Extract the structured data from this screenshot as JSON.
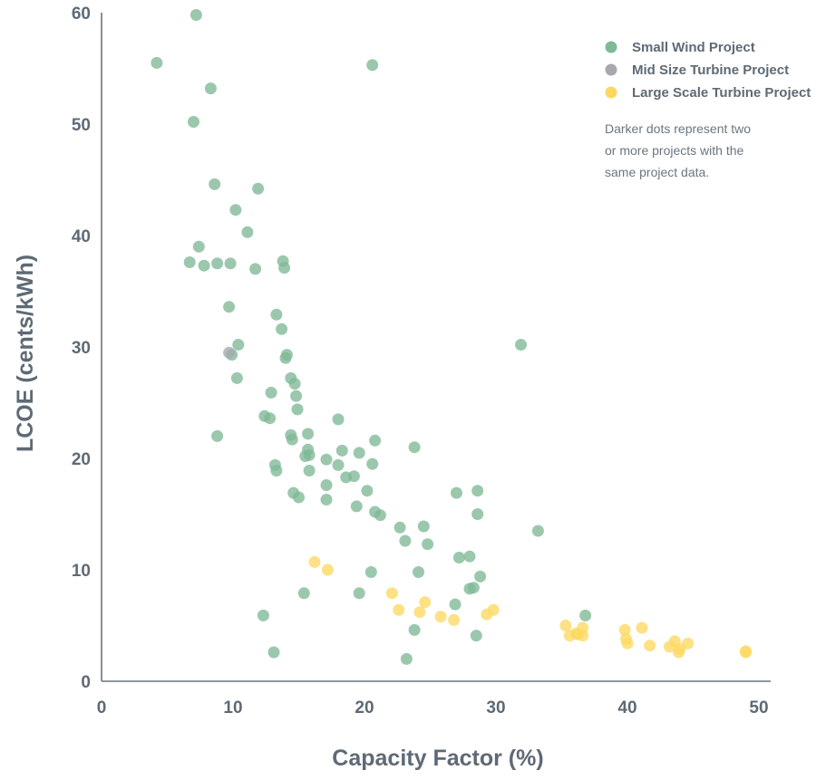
{
  "chart_data": {
    "type": "scatter",
    "title": "",
    "xlabel": "Capacity Factor (%)",
    "ylabel": "LCOE  (cents/kWh)",
    "xlim": [
      0,
      50
    ],
    "ylim": [
      0,
      60
    ],
    "xticks": [
      0,
      10,
      20,
      30,
      40,
      50
    ],
    "yticks": [
      0,
      10,
      20,
      30,
      40,
      50,
      60
    ],
    "grid": false,
    "legend_position": "top-right",
    "note": [
      "Darker dots represent two",
      "or more projects with the",
      "same project data."
    ],
    "series": [
      {
        "name": "Small Wind Project",
        "color": "#7fb996",
        "points": [
          [
            7.2,
            59.8
          ],
          [
            4.2,
            55.5
          ],
          [
            20.6,
            55.3
          ],
          [
            8.3,
            53.2
          ],
          [
            7.0,
            50.2
          ],
          [
            8.6,
            44.6
          ],
          [
            11.9,
            44.2
          ],
          [
            10.2,
            42.3
          ],
          [
            11.1,
            40.3
          ],
          [
            7.4,
            39.0
          ],
          [
            6.7,
            37.6
          ],
          [
            7.8,
            37.3
          ],
          [
            8.8,
            37.5
          ],
          [
            9.8,
            37.5
          ],
          [
            11.7,
            37.0
          ],
          [
            13.8,
            37.7
          ],
          [
            13.9,
            37.1
          ],
          [
            9.7,
            33.6
          ],
          [
            13.3,
            32.9
          ],
          [
            13.7,
            31.6
          ],
          [
            31.9,
            30.2
          ],
          [
            10.4,
            30.2
          ],
          [
            9.9,
            29.3
          ],
          [
            14.1,
            29.3
          ],
          [
            14.0,
            29.0
          ],
          [
            10.3,
            27.2
          ],
          [
            14.4,
            27.2
          ],
          [
            14.7,
            26.7
          ],
          [
            12.9,
            25.9
          ],
          [
            14.8,
            25.6
          ],
          [
            14.9,
            24.4
          ],
          [
            12.4,
            23.8
          ],
          [
            12.8,
            23.6
          ],
          [
            18.0,
            23.5
          ],
          [
            14.4,
            22.1
          ],
          [
            15.7,
            22.2
          ],
          [
            8.8,
            22.0
          ],
          [
            14.5,
            21.7
          ],
          [
            20.8,
            21.6
          ],
          [
            23.8,
            21.0
          ],
          [
            15.7,
            20.8
          ],
          [
            18.3,
            20.7
          ],
          [
            19.6,
            20.5
          ],
          [
            15.5,
            20.2
          ],
          [
            15.8,
            20.3
          ],
          [
            17.1,
            19.9
          ],
          [
            13.2,
            19.4
          ],
          [
            18.0,
            19.4
          ],
          [
            20.6,
            19.5
          ],
          [
            13.3,
            18.9
          ],
          [
            15.8,
            18.9
          ],
          [
            18.6,
            18.3
          ],
          [
            19.2,
            18.4
          ],
          [
            17.1,
            17.6
          ],
          [
            20.2,
            17.1
          ],
          [
            14.6,
            16.9
          ],
          [
            27.0,
            16.9
          ],
          [
            28.6,
            17.1
          ],
          [
            15.0,
            16.5
          ],
          [
            17.1,
            16.3
          ],
          [
            19.4,
            15.7
          ],
          [
            20.8,
            15.2
          ],
          [
            21.2,
            14.9
          ],
          [
            28.6,
            15.0
          ],
          [
            22.7,
            13.8
          ],
          [
            24.5,
            13.9
          ],
          [
            33.2,
            13.5
          ],
          [
            23.1,
            12.6
          ],
          [
            24.8,
            12.3
          ],
          [
            27.2,
            11.1
          ],
          [
            28.0,
            11.2
          ],
          [
            20.5,
            9.8
          ],
          [
            24.1,
            9.8
          ],
          [
            28.8,
            9.4
          ],
          [
            28.3,
            8.4
          ],
          [
            28.0,
            8.3
          ],
          [
            15.4,
            7.9
          ],
          [
            19.6,
            7.9
          ],
          [
            26.9,
            6.9
          ],
          [
            36.8,
            5.9
          ],
          [
            12.3,
            5.9
          ],
          [
            23.8,
            4.6
          ],
          [
            28.5,
            4.1
          ],
          [
            13.1,
            2.6
          ],
          [
            23.2,
            2.0
          ]
        ]
      },
      {
        "name": "Mid Size Turbine Project",
        "color": "#a7a9ac",
        "points": [
          [
            9.7,
            29.5
          ]
        ]
      },
      {
        "name": "Large Scale Turbine Project",
        "color": "#fcd862",
        "points": [
          [
            16.2,
            10.7
          ],
          [
            17.2,
            10.0
          ],
          [
            22.1,
            7.9
          ],
          [
            24.6,
            7.1
          ],
          [
            22.6,
            6.4
          ],
          [
            24.2,
            6.2
          ],
          [
            29.8,
            6.4
          ],
          [
            29.3,
            6.0
          ],
          [
            25.8,
            5.8
          ],
          [
            26.8,
            5.5
          ],
          [
            35.3,
            5.0
          ],
          [
            36.6,
            4.8
          ],
          [
            41.1,
            4.8
          ],
          [
            39.8,
            4.6
          ],
          [
            35.6,
            4.1
          ],
          [
            36.2,
            4.2
          ],
          [
            36.6,
            4.1
          ],
          [
            36.1,
            4.3
          ],
          [
            39.9,
            3.8
          ],
          [
            43.6,
            3.6
          ],
          [
            40.0,
            3.4
          ],
          [
            44.6,
            3.4
          ],
          [
            41.7,
            3.2
          ],
          [
            43.2,
            3.1
          ],
          [
            44.0,
            2.9
          ],
          [
            43.9,
            2.6
          ],
          [
            49.0,
            2.7
          ],
          [
            49.0,
            2.6
          ]
        ]
      }
    ]
  }
}
